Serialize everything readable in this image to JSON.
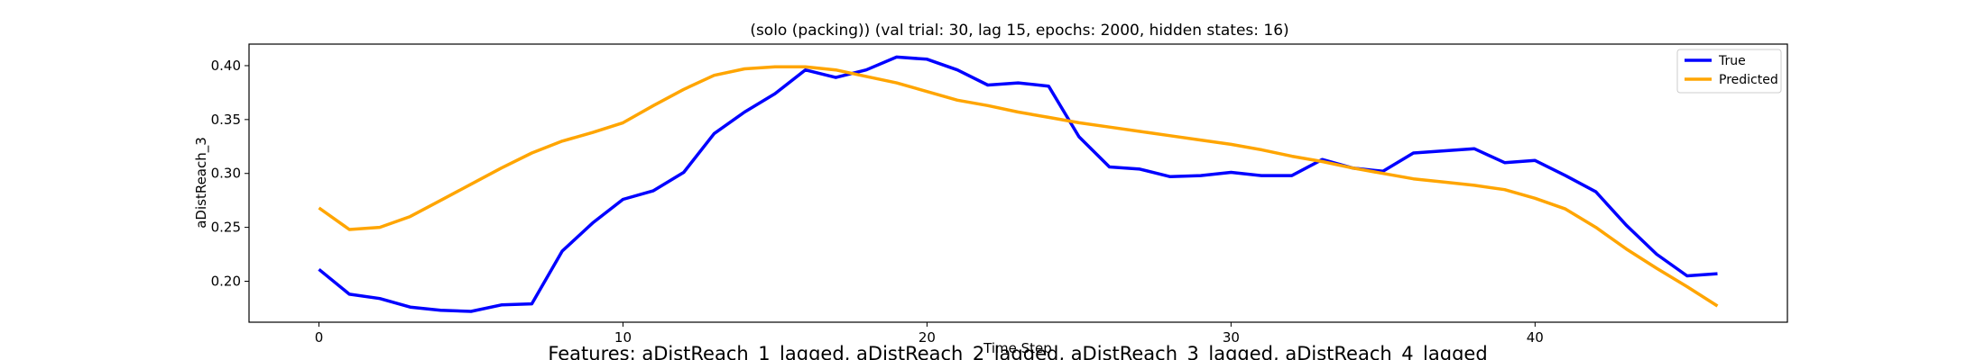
{
  "chart_data": {
    "type": "line",
    "title": "(solo (packing)) (val trial: 30, lag 15, epochs: 2000, hidden states: 16)",
    "xlabel": "Time Step",
    "ylabel": "aDistReach_3",
    "footer": "Features: aDistReach_1_lagged, aDistReach_2_lagged, aDistReach_3_lagged, aDistReach_4_lagged",
    "xlim": [
      -2.3,
      48.3
    ],
    "ylim": [
      0.162,
      0.42
    ],
    "xticks": [
      0,
      10,
      20,
      30,
      40
    ],
    "yticks": [
      0.2,
      0.25,
      0.3,
      0.35,
      0.4
    ],
    "ytick_labels": [
      "0.20",
      "0.25",
      "0.30",
      "0.35",
      "0.40"
    ],
    "grid": false,
    "legend_position": "top-right",
    "x": [
      0,
      1,
      2,
      3,
      4,
      5,
      6,
      7,
      8,
      9,
      10,
      11,
      12,
      13,
      14,
      15,
      16,
      17,
      18,
      19,
      20,
      21,
      22,
      23,
      24,
      25,
      26,
      27,
      28,
      29,
      30,
      31,
      32,
      33,
      34,
      35,
      36,
      37,
      38,
      39,
      40,
      41,
      42,
      43,
      44,
      45,
      46
    ],
    "series": [
      {
        "name": "True",
        "color": "#0000ff",
        "values": [
          0.211,
          0.188,
          0.184,
          0.176,
          0.173,
          0.172,
          0.178,
          0.179,
          0.228,
          0.254,
          0.276,
          0.284,
          0.301,
          0.337,
          0.357,
          0.374,
          0.396,
          0.389,
          0.396,
          0.408,
          0.406,
          0.396,
          0.382,
          0.384,
          0.381,
          0.334,
          0.306,
          0.304,
          0.297,
          0.298,
          0.301,
          0.298,
          0.298,
          0.313,
          0.305,
          0.302,
          0.319,
          0.321,
          0.323,
          0.31,
          0.312,
          0.298,
          0.283,
          0.252,
          0.225,
          0.205,
          0.207
        ]
      },
      {
        "name": "Predicted",
        "color": "#ffa500",
        "values": [
          0.268,
          0.248,
          0.25,
          0.26,
          0.275,
          0.29,
          0.305,
          0.319,
          0.33,
          0.338,
          0.347,
          0.363,
          0.378,
          0.391,
          0.397,
          0.399,
          0.399,
          0.396,
          0.39,
          0.384,
          0.376,
          0.368,
          0.363,
          0.357,
          0.352,
          0.347,
          0.343,
          0.339,
          0.335,
          0.331,
          0.327,
          0.322,
          0.316,
          0.311,
          0.305,
          0.3,
          0.295,
          0.292,
          0.289,
          0.285,
          0.277,
          0.267,
          0.25,
          0.23,
          0.212,
          0.195,
          0.177
        ]
      }
    ]
  }
}
